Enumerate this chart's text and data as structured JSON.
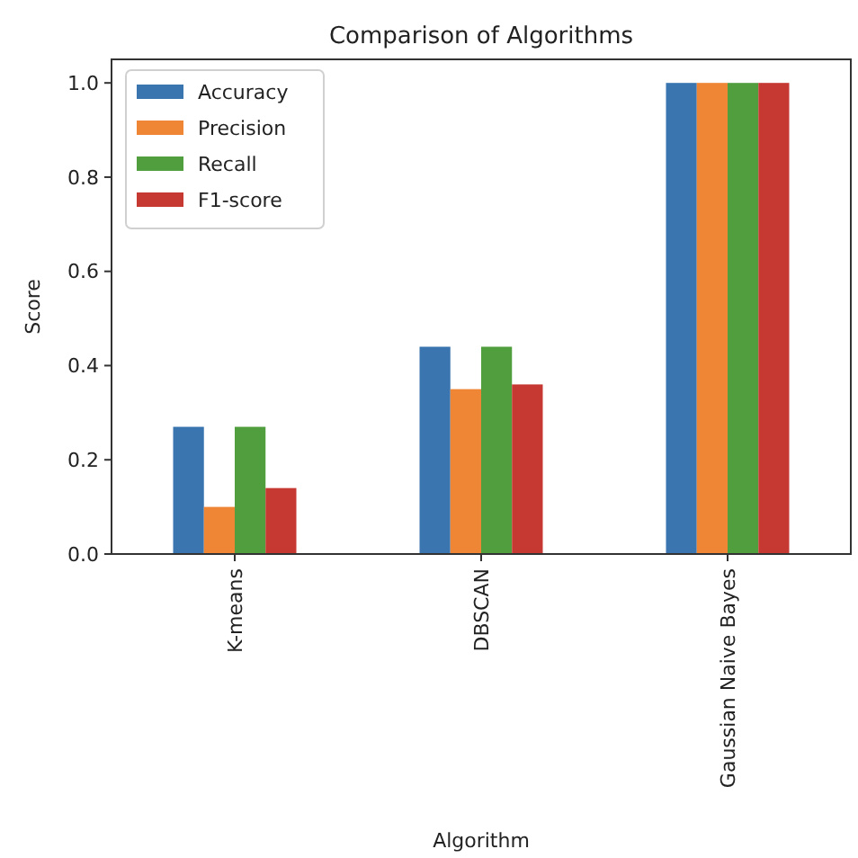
{
  "chart_data": {
    "type": "bar",
    "title": "Comparison of Algorithms",
    "xlabel": "Algorithm",
    "ylabel": "Score",
    "categories": [
      "K-means",
      "DBSCAN",
      "Gaussian Naive Bayes"
    ],
    "series": [
      {
        "name": "Accuracy",
        "color": "#3b75af",
        "values": [
          0.27,
          0.44,
          1.0
        ]
      },
      {
        "name": "Precision",
        "color": "#ef8636",
        "values": [
          0.1,
          0.35,
          1.0
        ]
      },
      {
        "name": "Recall",
        "color": "#519e3e",
        "values": [
          0.27,
          0.44,
          1.0
        ]
      },
      {
        "name": "F1-score",
        "color": "#c53932",
        "values": [
          0.14,
          0.36,
          1.0
        ]
      }
    ],
    "ylim": [
      0,
      1.05
    ],
    "yticks": [
      {
        "value": 0,
        "label": "0.0"
      },
      {
        "value": 0.2,
        "label": "0.2"
      },
      {
        "value": 0.4,
        "label": "0.4"
      },
      {
        "value": 0.6,
        "label": "0.6"
      },
      {
        "value": 0.8,
        "label": "0.8"
      },
      {
        "value": 1.0,
        "label": "1.0"
      }
    ],
    "legend": "top left"
  }
}
